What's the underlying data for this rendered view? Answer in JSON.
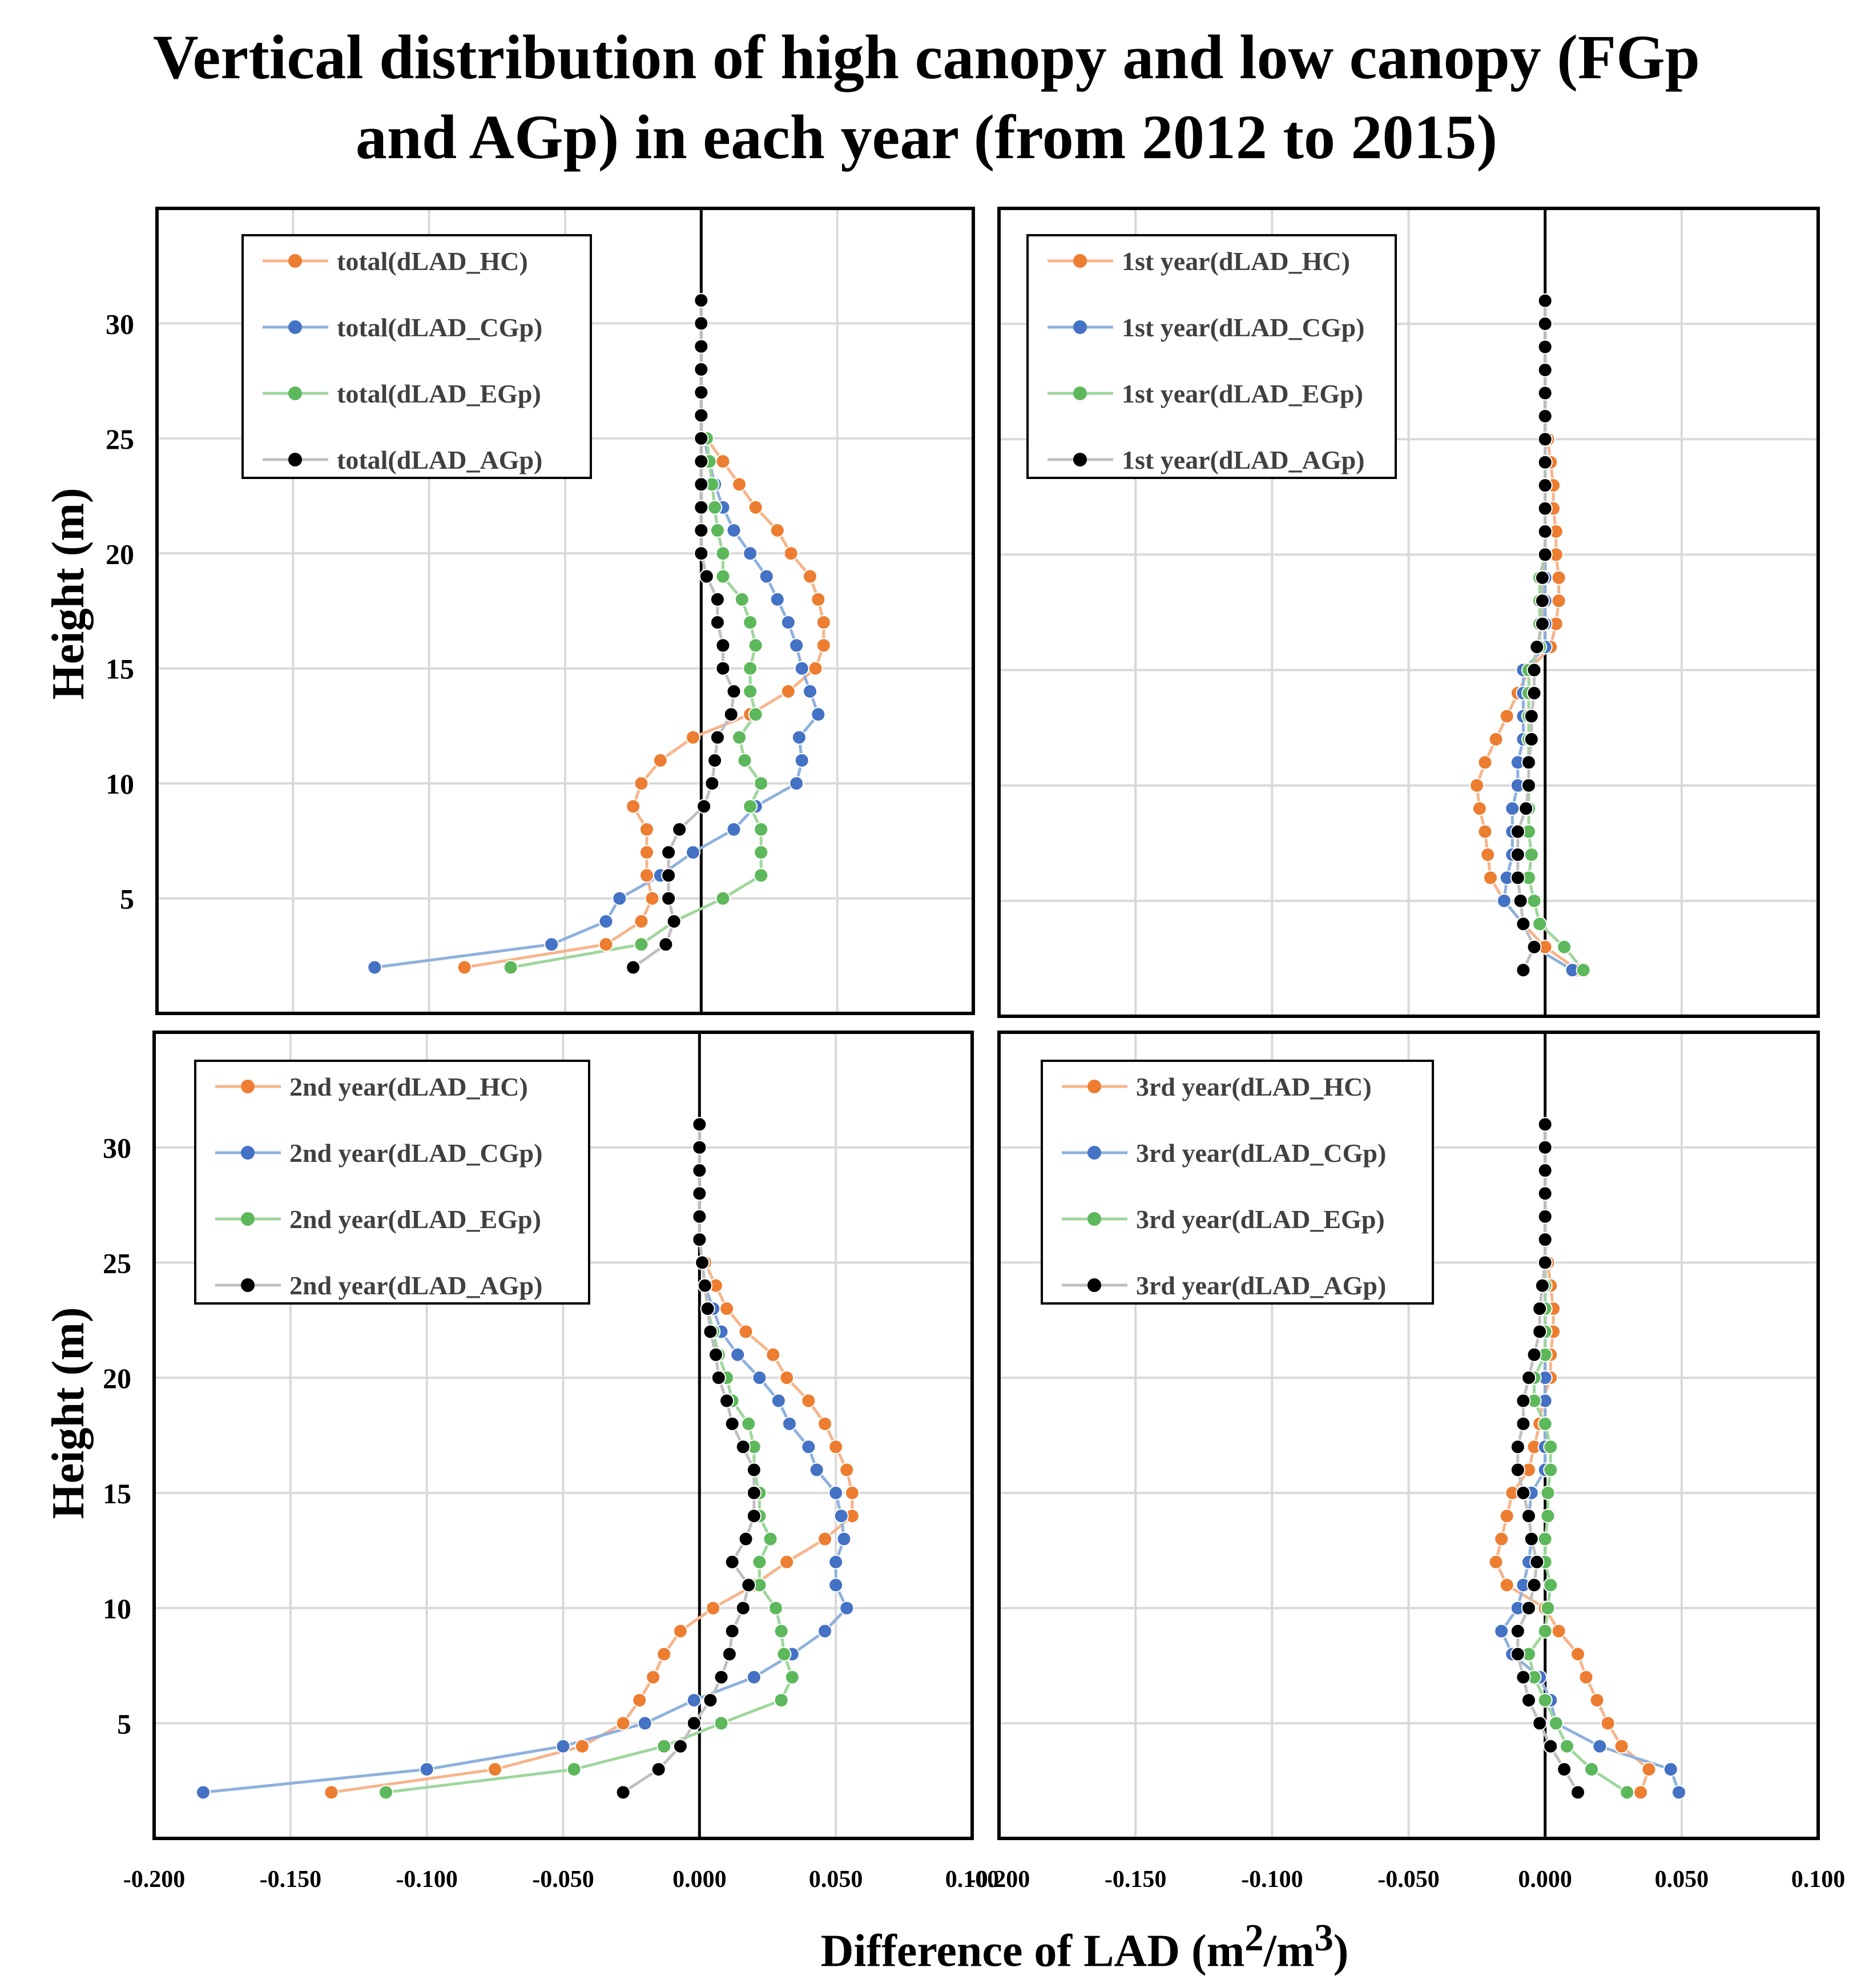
{
  "title_line1": "Vertical distribution of high canopy and low canopy (FGp",
  "title_line2": "and AGp) in each year (from 2012 to 2015)",
  "colors": {
    "HC": "#ED7D31",
    "CGp": "#4472C4",
    "EGp": "#5DB85C",
    "AGp": "#000000"
  },
  "chart_data": [
    {
      "type": "line",
      "title": "",
      "ylabel": "Height (m)",
      "xlabel": "",
      "xlim": [
        -0.2,
        0.1
      ],
      "ylim": [
        0,
        35
      ],
      "yticks": [
        "5",
        "10",
        "15",
        "20",
        "25",
        "30"
      ],
      "xticks": [],
      "series": [
        {
          "name": "total(dLAD_HC)",
          "key": "HC",
          "y": [
            2,
            3,
            4,
            5,
            6,
            7,
            8,
            9,
            10,
            11,
            12,
            13,
            14,
            15,
            16,
            17,
            18,
            19,
            20,
            21,
            22,
            23,
            24,
            25
          ],
          "x": [
            -0.087,
            -0.035,
            -0.022,
            -0.018,
            -0.02,
            -0.02,
            -0.02,
            -0.025,
            -0.022,
            -0.015,
            -0.003,
            0.018,
            0.032,
            0.042,
            0.045,
            0.045,
            0.043,
            0.04,
            0.033,
            0.028,
            0.02,
            0.014,
            0.008,
            0.002
          ]
        },
        {
          "name": "total(dLAD_CGp)",
          "key": "CGp",
          "y": [
            2,
            3,
            4,
            5,
            6,
            7,
            8,
            9,
            10,
            11,
            12,
            13,
            14,
            15,
            16,
            17,
            18,
            19,
            20,
            21,
            22,
            23,
            24,
            25
          ],
          "x": [
            -0.12,
            -0.055,
            -0.035,
            -0.03,
            -0.015,
            -0.003,
            0.012,
            0.02,
            0.035,
            0.037,
            0.036,
            0.043,
            0.04,
            0.037,
            0.035,
            0.032,
            0.028,
            0.024,
            0.018,
            0.012,
            0.008,
            0.005,
            0.003,
            0.001
          ]
        },
        {
          "name": "total(dLAD_EGp)",
          "key": "EGp",
          "y": [
            2,
            3,
            4,
            5,
            6,
            7,
            8,
            9,
            10,
            11,
            12,
            13,
            14,
            15,
            16,
            17,
            18,
            19,
            20,
            21,
            22,
            23,
            24,
            25
          ],
          "x": [
            -0.07,
            -0.022,
            -0.01,
            0.008,
            0.022,
            0.022,
            0.022,
            0.018,
            0.022,
            0.016,
            0.014,
            0.02,
            0.018,
            0.018,
            0.02,
            0.018,
            0.015,
            0.008,
            0.008,
            0.006,
            0.005,
            0.004,
            0.003,
            0.002
          ]
        },
        {
          "name": "total(dLAD_AGp)",
          "key": "AGp",
          "y": [
            2,
            3,
            4,
            5,
            6,
            7,
            8,
            9,
            10,
            11,
            12,
            13,
            14,
            15,
            16,
            17,
            18,
            19,
            20,
            21,
            22,
            23,
            24,
            25,
            26,
            27,
            28,
            29,
            30,
            31
          ],
          "x": [
            -0.025,
            -0.013,
            -0.01,
            -0.012,
            -0.012,
            -0.012,
            -0.008,
            0.001,
            0.004,
            0.005,
            0.006,
            0.011,
            0.012,
            0.008,
            0.008,
            0.006,
            0.006,
            0.002,
            0.0,
            0.0,
            0.0,
            0.0,
            0.0,
            0.0,
            0.0,
            0.0,
            0.0,
            0.0,
            0.0,
            0.0
          ]
        }
      ]
    },
    {
      "type": "line",
      "title": "",
      "ylabel": "",
      "xlabel": "",
      "xlim": [
        -0.2,
        0.1
      ],
      "ylim": [
        0,
        35
      ],
      "yticks": [],
      "xticks": [],
      "series": [
        {
          "name": "1st year(dLAD_HC)",
          "key": "HC",
          "y": [
            2,
            3,
            4,
            5,
            6,
            7,
            8,
            9,
            10,
            11,
            12,
            13,
            14,
            15,
            16,
            17,
            18,
            19,
            20,
            21,
            22,
            23,
            24,
            25
          ],
          "x": [
            0.012,
            0.0,
            -0.008,
            -0.015,
            -0.02,
            -0.021,
            -0.022,
            -0.024,
            -0.025,
            -0.022,
            -0.018,
            -0.014,
            -0.01,
            -0.006,
            0.002,
            0.004,
            0.005,
            0.005,
            0.004,
            0.004,
            0.003,
            0.003,
            0.002,
            0.001
          ]
        },
        {
          "name": "1st year(dLAD_CGp)",
          "key": "CGp",
          "y": [
            2,
            3,
            4,
            5,
            6,
            7,
            8,
            9,
            10,
            11,
            12,
            13,
            14,
            15,
            16,
            17,
            18,
            19,
            20,
            21,
            22,
            23,
            24,
            25
          ],
          "x": [
            0.01,
            -0.004,
            -0.008,
            -0.015,
            -0.014,
            -0.012,
            -0.012,
            -0.012,
            -0.01,
            -0.01,
            -0.008,
            -0.008,
            -0.008,
            -0.008,
            0.0,
            0.0,
            0.0,
            0.0,
            0.0,
            0.0,
            0.0,
            0.0,
            0.0,
            0.0
          ]
        },
        {
          "name": "1st year(dLAD_EGp)",
          "key": "EGp",
          "y": [
            2,
            3,
            4,
            5,
            6,
            7,
            8,
            9,
            10,
            11,
            12,
            13,
            14,
            15,
            16,
            17,
            18,
            19,
            20,
            21,
            22,
            23,
            24,
            25
          ],
          "x": [
            0.014,
            0.007,
            -0.002,
            -0.004,
            -0.006,
            -0.005,
            -0.006,
            -0.006,
            -0.006,
            -0.006,
            -0.006,
            -0.006,
            -0.006,
            -0.006,
            -0.002,
            -0.002,
            -0.002,
            -0.002,
            0.0,
            0.0,
            0.0,
            0.0,
            0.0,
            0.0
          ]
        },
        {
          "name": "1st year(dLAD_AGp)",
          "key": "AGp",
          "y": [
            2,
            3,
            4,
            5,
            6,
            7,
            8,
            9,
            10,
            11,
            12,
            13,
            14,
            15,
            16,
            17,
            18,
            19,
            20,
            21,
            22,
            23,
            24,
            25,
            26,
            27,
            28,
            29,
            30,
            31
          ],
          "x": [
            -0.008,
            -0.004,
            -0.008,
            -0.009,
            -0.01,
            -0.01,
            -0.01,
            -0.007,
            -0.006,
            -0.006,
            -0.005,
            -0.005,
            -0.004,
            -0.004,
            -0.003,
            -0.001,
            -0.001,
            -0.001,
            0.0,
            0.0,
            0.0,
            0.0,
            0.0,
            0.0,
            0.0,
            0.0,
            0.0,
            0.0,
            0.0,
            0.0
          ]
        }
      ]
    },
    {
      "type": "line",
      "title": "",
      "ylabel": "Height (m)",
      "xlabel": "",
      "xlim": [
        -0.2,
        0.1
      ],
      "ylim": [
        0,
        35
      ],
      "yticks": [
        "5",
        "10",
        "15",
        "20",
        "25",
        "30"
      ],
      "xticks": [
        "-0.200",
        "-0.150",
        "-0.100",
        "-0.050",
        "0.000",
        "0.050",
        "0.100"
      ],
      "series": [
        {
          "name": "2nd year(dLAD_HC)",
          "key": "HC",
          "y": [
            2,
            3,
            4,
            5,
            6,
            7,
            8,
            9,
            10,
            11,
            12,
            13,
            14,
            15,
            16,
            17,
            18,
            19,
            20,
            21,
            22,
            23,
            24,
            25
          ],
          "x": [
            -0.135,
            -0.075,
            -0.043,
            -0.028,
            -0.022,
            -0.017,
            -0.013,
            -0.007,
            0.005,
            0.02,
            0.032,
            0.046,
            0.056,
            0.056,
            0.054,
            0.05,
            0.046,
            0.04,
            0.032,
            0.027,
            0.017,
            0.01,
            0.006,
            0.002
          ]
        },
        {
          "name": "2nd year(dLAD_CGp)",
          "key": "CGp",
          "y": [
            2,
            3,
            4,
            5,
            6,
            7,
            8,
            9,
            10,
            11,
            12,
            13,
            14,
            15,
            16,
            17,
            18,
            19,
            20,
            21,
            22,
            23,
            24,
            25
          ],
          "x": [
            -0.182,
            -0.1,
            -0.05,
            -0.02,
            -0.002,
            0.02,
            0.034,
            0.046,
            0.054,
            0.05,
            0.05,
            0.053,
            0.052,
            0.05,
            0.043,
            0.04,
            0.033,
            0.029,
            0.022,
            0.014,
            0.008,
            0.005,
            0.002,
            0.001
          ]
        },
        {
          "name": "2nd year(dLAD_EGp)",
          "key": "EGp",
          "y": [
            2,
            3,
            4,
            5,
            6,
            7,
            8,
            9,
            10,
            11,
            12,
            13,
            14,
            15,
            16,
            17,
            18,
            19,
            20,
            21,
            22,
            23,
            24,
            25
          ],
          "x": [
            -0.115,
            -0.046,
            -0.013,
            0.008,
            0.03,
            0.034,
            0.031,
            0.03,
            0.028,
            0.022,
            0.022,
            0.026,
            0.022,
            0.022,
            0.02,
            0.02,
            0.018,
            0.012,
            0.01,
            0.007,
            0.005,
            0.003,
            0.002,
            0.001
          ]
        },
        {
          "name": "2nd year(dLAD_AGp)",
          "key": "AGp",
          "y": [
            2,
            3,
            4,
            5,
            6,
            7,
            8,
            9,
            10,
            11,
            12,
            13,
            14,
            15,
            16,
            17,
            18,
            19,
            20,
            21,
            22,
            23,
            24,
            25,
            26,
            27,
            28,
            29,
            30,
            31
          ],
          "x": [
            -0.028,
            -0.015,
            -0.007,
            -0.002,
            0.004,
            0.008,
            0.011,
            0.012,
            0.016,
            0.018,
            0.012,
            0.017,
            0.02,
            0.02,
            0.02,
            0.016,
            0.012,
            0.01,
            0.007,
            0.006,
            0.004,
            0.003,
            0.002,
            0.001,
            0.0,
            0.0,
            0.0,
            0.0,
            0.0,
            0.0
          ]
        }
      ]
    },
    {
      "type": "line",
      "title": "",
      "ylabel": "",
      "xlabel": "Difference of LAD (m²/m³)",
      "xlim": [
        -0.2,
        0.1
      ],
      "ylim": [
        0,
        35
      ],
      "yticks": [],
      "xticks": [
        "-0.200",
        "-0.150",
        "-0.100",
        "-0.050",
        "0.000",
        "0.050",
        "0.100"
      ],
      "series": [
        {
          "name": "3rd year(dLAD_HC)",
          "key": "HC",
          "y": [
            2,
            3,
            4,
            5,
            6,
            7,
            8,
            9,
            10,
            11,
            12,
            13,
            14,
            15,
            16,
            17,
            18,
            19,
            20,
            21,
            22,
            23,
            24,
            25
          ],
          "x": [
            0.035,
            0.038,
            0.028,
            0.023,
            0.019,
            0.015,
            0.012,
            0.005,
            0.0,
            -0.014,
            -0.018,
            -0.016,
            -0.014,
            -0.012,
            -0.006,
            -0.004,
            -0.002,
            -0.001,
            0.002,
            0.002,
            0.003,
            0.003,
            0.002,
            0.001
          ]
        },
        {
          "name": "3rd year(dLAD_CGp)",
          "key": "CGp",
          "y": [
            2,
            3,
            4,
            5,
            6,
            7,
            8,
            9,
            10,
            11,
            12,
            13,
            14,
            15,
            16,
            17,
            18,
            19,
            20,
            21,
            22,
            23,
            24,
            25
          ],
          "x": [
            0.049,
            0.046,
            0.02,
            0.004,
            0.002,
            -0.002,
            -0.012,
            -0.016,
            -0.01,
            -0.008,
            -0.006,
            -0.005,
            -0.006,
            -0.005,
            0.0,
            0.0,
            0.0,
            0.0,
            0.0,
            0.0,
            0.0,
            0.0,
            0.0,
            0.0
          ]
        },
        {
          "name": "3rd year(dLAD_EGp)",
          "key": "EGp",
          "y": [
            2,
            3,
            4,
            5,
            6,
            7,
            8,
            9,
            10,
            11,
            12,
            13,
            14,
            15,
            16,
            17,
            18,
            19,
            20,
            21,
            22,
            23,
            24,
            25
          ],
          "x": [
            0.03,
            0.017,
            0.008,
            0.004,
            0.0,
            -0.004,
            -0.006,
            0.0,
            0.001,
            0.002,
            0.0,
            0.0,
            0.001,
            0.001,
            0.002,
            0.002,
            0.0,
            -0.004,
            -0.004,
            0.0,
            0.0,
            0.0,
            0.0,
            0.0
          ]
        },
        {
          "name": "3rd year(dLAD_AGp)",
          "key": "AGp",
          "y": [
            2,
            3,
            4,
            5,
            6,
            7,
            8,
            9,
            10,
            11,
            12,
            13,
            14,
            15,
            16,
            17,
            18,
            19,
            20,
            21,
            22,
            23,
            24,
            25,
            26,
            27,
            28,
            29,
            30,
            31
          ],
          "x": [
            0.012,
            0.007,
            0.002,
            -0.002,
            -0.006,
            -0.008,
            -0.01,
            -0.01,
            -0.006,
            -0.004,
            -0.003,
            -0.005,
            -0.006,
            -0.008,
            -0.01,
            -0.01,
            -0.008,
            -0.008,
            -0.006,
            -0.004,
            -0.002,
            -0.002,
            -0.001,
            0.0,
            0.0,
            0.0,
            0.0,
            0.0,
            0.0,
            0.0
          ]
        }
      ]
    }
  ]
}
